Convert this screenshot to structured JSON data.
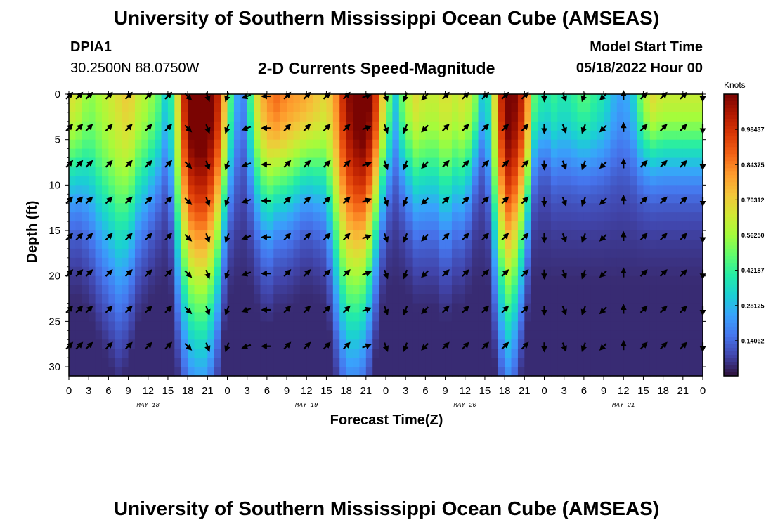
{
  "header": {
    "title": "University of Southern Mississippi Ocean Cube (AMSEAS)",
    "station_id": "DPIA1",
    "coordinates": "30.2500N  88.0750W",
    "product": "2-D Currents Speed-Magnitude",
    "model_start_label": "Model Start Time",
    "model_start_value": "05/18/2022 Hour 00"
  },
  "footer": {
    "title": "University of Southern Mississippi Ocean Cube (AMSEAS)"
  },
  "colors": {
    "scale": [
      "#30123b",
      "#4145ab",
      "#4675ed",
      "#39a2fc",
      "#1bcfd4",
      "#24eca6",
      "#61fc6c",
      "#a4fc3b",
      "#d1e834",
      "#f3c63a",
      "#fe9b2d",
      "#f36315",
      "#d93806",
      "#b11901",
      "#7a0402"
    ]
  },
  "chart_data": {
    "type": "heatmap",
    "title": "2-D Currents Speed-Magnitude",
    "xlabel": "Forecast Time(Z)",
    "ylabel": "Depth (ft)",
    "x_ticks": [
      "0",
      "3",
      "6",
      "9",
      "12",
      "15",
      "18",
      "21",
      "0",
      "3",
      "6",
      "9",
      "12",
      "15",
      "18",
      "21",
      "0",
      "3",
      "6",
      "9",
      "12",
      "15",
      "18",
      "21",
      "0",
      "3",
      "6",
      "9",
      "12",
      "15",
      "18",
      "21",
      "0"
    ],
    "x_range_hours": [
      0,
      96
    ],
    "date_labels": [
      {
        "label": "MAY 18",
        "hour": 12
      },
      {
        "label": "MAY 19",
        "hour": 36
      },
      {
        "label": "MAY 20",
        "hour": 60
      },
      {
        "label": "MAY 21",
        "hour": 84
      }
    ],
    "y_ticks": [
      "0",
      "5",
      "10",
      "15",
      "20",
      "25",
      "30"
    ],
    "y_range_ft": [
      0,
      31
    ],
    "colorbar": {
      "label": "Knots",
      "min": 0.0,
      "max": 1.125,
      "tick_values": [
        0.140625,
        0.28125,
        0.421875,
        0.5625,
        0.703125,
        0.84375,
        0.984375
      ],
      "tick_labels": [
        "0.14062",
        "0.28125",
        "0.42187",
        "0.56250",
        "0.70312",
        "0.84375",
        "0.98437"
      ]
    },
    "speed_profile": {
      "hours": [
        0,
        1.5,
        3,
        4.5,
        6,
        7.5,
        9,
        10.5,
        12,
        13.5,
        15,
        16.5,
        18,
        19.5,
        21,
        22.5,
        24,
        25,
        26.5,
        28.5,
        30,
        31.5,
        33,
        36,
        39,
        40.5,
        42,
        43.5,
        45,
        46.5,
        48,
        49.5,
        51,
        52.5,
        54,
        55.5,
        57,
        58.5,
        60,
        61.5,
        63,
        64.5,
        66,
        66.5,
        67.5,
        69,
        70.5,
        72,
        73.5,
        75,
        76.5,
        78,
        79.5,
        81,
        82.5,
        84,
        85.5,
        87,
        88.5,
        90,
        91.5,
        93,
        94.5,
        96
      ],
      "peak_speed_knots": [
        0.55,
        0.5,
        0.4,
        0.45,
        0.5,
        0.55,
        0.6,
        0.5,
        0.45,
        0.35,
        0.15,
        0.55,
        1.05,
        1.1,
        1.1,
        0.9,
        0.5,
        0.15,
        0.08,
        0.55,
        0.7,
        0.75,
        0.7,
        0.65,
        0.55,
        0.7,
        0.95,
        1.05,
        1.1,
        0.85,
        0.45,
        0.2,
        0.45,
        0.55,
        0.5,
        0.5,
        0.55,
        0.5,
        0.55,
        0.4,
        0.1,
        0.55,
        1.05,
        1.05,
        1.0,
        0.85,
        0.35,
        0.25,
        0.3,
        0.25,
        0.3,
        0.35,
        0.3,
        0.25,
        0.15,
        0.1,
        0.2,
        0.45,
        0.55,
        0.5,
        0.5,
        0.5,
        0.5,
        0.5
      ],
      "depth_decay_ft": [
        11,
        11,
        13,
        16,
        18,
        20,
        18,
        14,
        12,
        10,
        8,
        20,
        24,
        25,
        25,
        20,
        12,
        10,
        8,
        12,
        14,
        12,
        12,
        10,
        12,
        20,
        25,
        24,
        22,
        16,
        10,
        8,
        10,
        12,
        12,
        12,
        14,
        12,
        12,
        8,
        6,
        18,
        24,
        24,
        22,
        16,
        8,
        6,
        8,
        8,
        8,
        8,
        8,
        8,
        8,
        8,
        8,
        8,
        8,
        8,
        8,
        8,
        8,
        8
      ]
    },
    "vector_depths_ft": [
      0,
      3.5,
      7.5,
      11.5,
      15.5,
      19.5,
      23.5,
      27.5
    ],
    "vector_hours": [
      0,
      1.5,
      3,
      6,
      9,
      12,
      15,
      18,
      21,
      24,
      27,
      30,
      33,
      36,
      39,
      42,
      45,
      48,
      51,
      54,
      57,
      60,
      63,
      66,
      69,
      72,
      75,
      78,
      81,
      84,
      87,
      90,
      93,
      96
    ],
    "vector_direction_deg": [
      45,
      45,
      45,
      45,
      45,
      45,
      45,
      135,
      160,
      200,
      250,
      270,
      45,
      45,
      45,
      45,
      70,
      160,
      200,
      225,
      45,
      45,
      45,
      45,
      45,
      180,
      160,
      200,
      225,
      0,
      45,
      45,
      45,
      180
    ]
  }
}
